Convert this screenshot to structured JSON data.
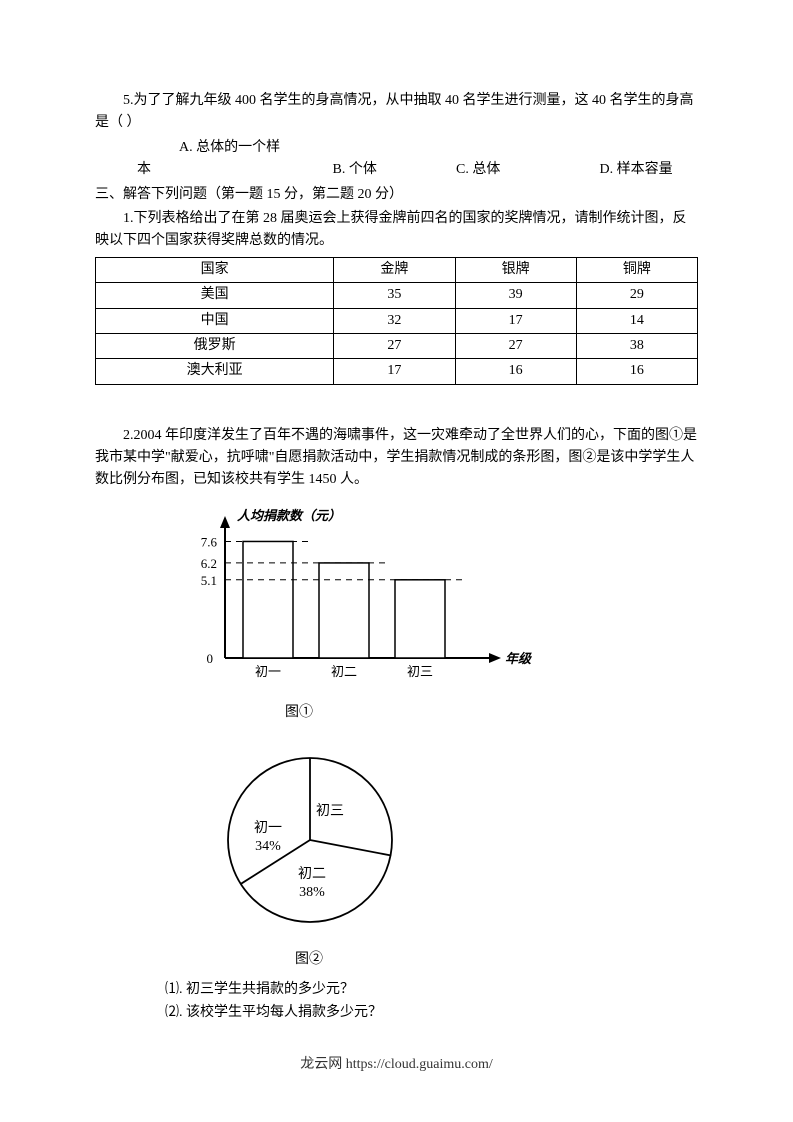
{
  "q5": {
    "text": "5.为了了解九年级 400 名学生的身高情况，从中抽取 40 名学生进行测量，这 40 名学生的身高是（    ）",
    "A": "A. 总体的一个样本",
    "B": "B. 个体",
    "C": "C. 总体",
    "D": "D. 样本容量"
  },
  "sec3": "三、解答下列问题（第一题 15 分，第二题 20 分）",
  "q1": "1.下列表格给出了在第 28 届奥运会上获得金牌前四名的国家的奖牌情况，请制作统计图，反映以下四个国家获得奖牌总数的情况。",
  "table": {
    "columns": [
      "国家",
      "金牌",
      "银牌",
      "铜牌"
    ],
    "rows": [
      [
        "美国",
        "35",
        "39",
        "29"
      ],
      [
        "中国",
        "32",
        "17",
        "14"
      ],
      [
        "俄罗斯",
        "27",
        "27",
        "38"
      ],
      [
        "澳大利亚",
        "17",
        "16",
        "16"
      ]
    ]
  },
  "q2": "2.2004 年印度洋发生了百年不遇的海啸事件，这一灾难牵动了全世界人们的心，下面的图①是我市某中学\"献爱心，抗呼啸\"自愿捐款活动中，学生捐款情况制成的条形图，图②是该中学学生人数比例分布图，已知该校共有学生 1450 人。",
  "bar_chart": {
    "type": "bar",
    "y_title": "人均捐款数（元）",
    "x_title": "年级",
    "y_ticks": [
      "0",
      "5.1",
      "6.2",
      "7.6"
    ],
    "y_values": [
      0,
      5.1,
      6.2,
      7.6
    ],
    "categories": [
      "初一",
      "初二",
      "初三"
    ],
    "values": [
      7.6,
      6.2,
      5.1
    ],
    "ylim": [
      0,
      9
    ],
    "axis_color": "#000000",
    "bar_fill": "#ffffff",
    "bar_stroke": "#000000",
    "dash_color": "#000000",
    "title_fontsize": 13,
    "tick_fontsize": 13,
    "caption": "图①"
  },
  "pie_chart": {
    "type": "pie",
    "slices": [
      {
        "label": "初一",
        "pct_label": "34%",
        "value": 34
      },
      {
        "label": "初二",
        "pct_label": "38%",
        "value": 38
      },
      {
        "label": "初三",
        "pct_label": "",
        "value": 28
      }
    ],
    "stroke": "#000000",
    "fill": "#ffffff",
    "label_fontsize": 14,
    "caption": "图②"
  },
  "subs": {
    "s1": "⑴. 初三学生共捐款的多少元？",
    "s2": "⑵. 该校学生平均每人捐款多少元？"
  },
  "footer": "龙云网 https://cloud.guaimu.com/"
}
